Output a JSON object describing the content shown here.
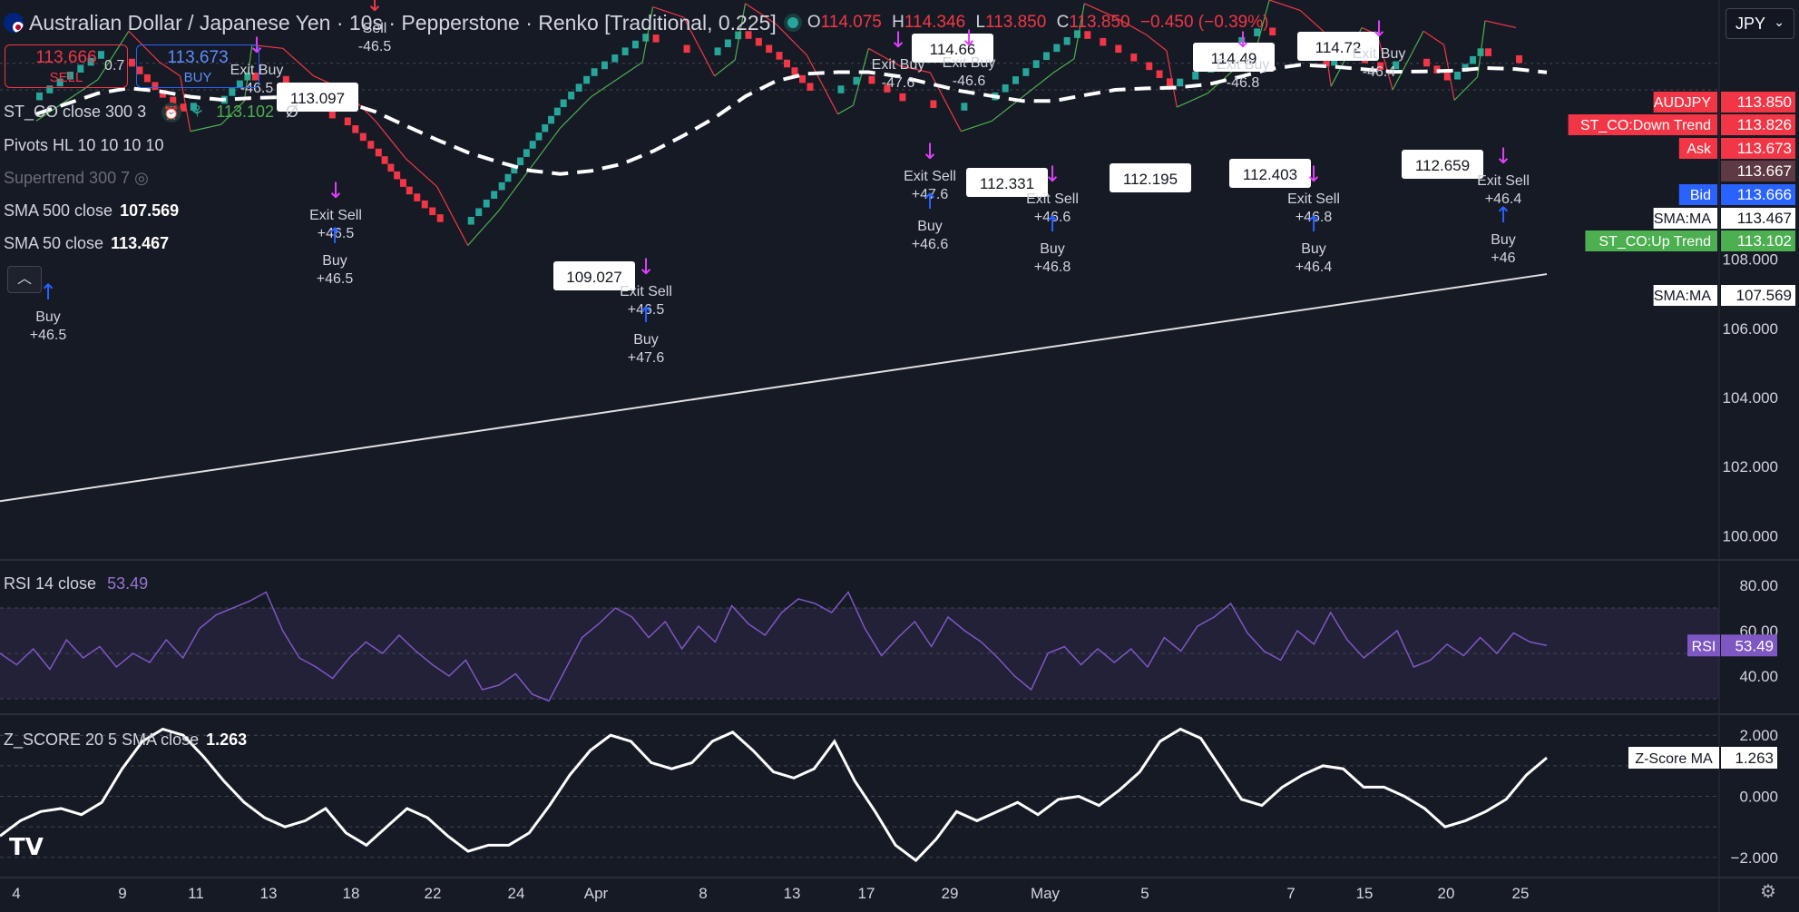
{
  "header": {
    "symbol_title": "Australian Dollar / Japanese Yen · 10s · Pepperstone · Renko [Traditional, 0.225]",
    "ohlc": {
      "o_label": "O",
      "o": "114.075",
      "h_label": "H",
      "h": "114.346",
      "l_label": "L",
      "l": "113.850",
      "c_label": "C",
      "c": "113.850",
      "change": "−0.450 (−0.39%)"
    },
    "currency": "JPY"
  },
  "trade": {
    "sell_price": "113.666",
    "sell_label": "SELL",
    "spread": "0.7",
    "buy_price": "113.673",
    "buy_label": "BUY"
  },
  "legends": {
    "st_co": {
      "name": "ST_CO close 300 3",
      "value": "113.102",
      "extra": "Ø"
    },
    "pivots": {
      "name": "Pivots HL 10 10 10 10"
    },
    "supertrend": {
      "name": "Supertrend 300 7"
    },
    "sma500": {
      "name": "SMA 500 close",
      "value": "107.569"
    },
    "sma50": {
      "name": "SMA 50 close",
      "value": "113.467"
    },
    "rsi": {
      "name": "RSI 14 close",
      "value": "53.49"
    },
    "zscore": {
      "name": "Z_SCORE 20 5 SMA close",
      "value": "1.263"
    }
  },
  "colors": {
    "bg": "#161a25",
    "up": "#26a69a",
    "down": "#f23645",
    "buy_arrow": "#2962ff",
    "exit_arrow": "#e040fb",
    "rsi": "#7e57c2",
    "grid": "#2a2e39"
  },
  "chart_data": [
    {
      "type": "renko",
      "title": "Australian Dollar / Japanese Yen · 10s · Pepperstone · Renko [Traditional, 0.225]",
      "y_ticks": [
        "108.000",
        "106.000",
        "104.000",
        "102.000",
        "100.000"
      ],
      "ylim": [
        99.3,
        115.5
      ],
      "x_ticks": [
        "4",
        "9",
        "11",
        "13",
        "18",
        "22",
        "24",
        "Apr",
        "8",
        "13",
        "17",
        "29",
        "May",
        "5",
        "7",
        "15",
        "20",
        "25"
      ],
      "price_path": [
        112.6,
        113.2,
        113.8,
        113.8,
        112.9,
        112.3,
        112.5,
        113.4,
        113.3,
        112.5,
        112.1,
        111.2,
        110.1,
        109.3,
        109.0,
        110.0,
        111.2,
        112.4,
        113.3,
        113.9,
        114.5,
        114.2,
        113.9,
        114.6,
        114.0,
        113.1,
        112.8,
        113.3,
        112.8,
        112.6,
        112.3,
        112.6,
        113.3,
        114.0,
        114.6,
        114.2,
        113.7,
        113.0,
        113.4,
        114.2,
        114.7,
        114.4,
        113.6,
        113.9,
        113.5,
        113.8,
        113.2,
        114.1,
        113.9,
        113.85
      ],
      "price_labels": [
        {
          "value": "113.0??",
          "text": "113.097"
        },
        {
          "value": "109.02",
          "text": "109.027"
        },
        {
          "value": "114.6",
          "text": "114.66"
        },
        {
          "value": "112.",
          "text": "112.331"
        },
        {
          "value": "112.195",
          "text": "112.195"
        },
        {
          "value": "114.4",
          "text": "114.49"
        },
        {
          "value": "112.403",
          "text": "112.403"
        },
        {
          "value": "114.7",
          "text": "114.72"
        },
        {
          "value": "112.659",
          "text": "112.659"
        }
      ],
      "signals": [
        {
          "type": "Buy",
          "value": "+46.5"
        },
        {
          "type": "Sell",
          "value": "-46.5"
        },
        {
          "type": "Exit Buy",
          "value": "-46.5"
        },
        {
          "type": "Exit Sell",
          "value": "+46.5"
        },
        {
          "type": "Buy",
          "value": "+46.5"
        },
        {
          "type": "Exit Sell",
          "value": "+46.5"
        },
        {
          "type": "Buy",
          "value": "+47.6"
        },
        {
          "type": "Exit Buy",
          "value": "-47.6"
        },
        {
          "type": "Exit Buy",
          "value": "-46.6"
        },
        {
          "type": "Exit Sell",
          "value": "+47.6"
        },
        {
          "type": "Buy",
          "value": "+46.6"
        },
        {
          "type": "Exit Sell",
          "value": "+46.6"
        },
        {
          "type": "Buy",
          "value": "+46.8"
        },
        {
          "type": "Exit Buy",
          "value": "-46.8"
        },
        {
          "type": "Exit Sell",
          "value": "+46.8"
        },
        {
          "type": "Buy",
          "value": "+46.4"
        },
        {
          "type": "Exit Buy",
          "value": "-46.4"
        },
        {
          "type": "Exit Sell",
          "value": "+46.4"
        },
        {
          "type": "Buy",
          "value": "+46"
        }
      ],
      "sma500": {
        "start": 101.0,
        "end": 107.569
      },
      "axis_badges": [
        {
          "label": "AUDJPY",
          "value": "113.850",
          "color": "#f23645"
        },
        {
          "label": "ST_CO:Down Trend",
          "value": "113.826",
          "color": "#f23645"
        },
        {
          "label": "Ask",
          "value": "113.673",
          "color": "#f23645"
        },
        {
          "label": "",
          "value": "113.667",
          "color": "#5d3a44"
        },
        {
          "label": "Bid",
          "value": "113.666",
          "color": "#2962ff"
        },
        {
          "label": "SMA:MA",
          "value": "113.467",
          "color": "#ffffff"
        },
        {
          "label": "ST_CO:Up Trend",
          "value": "113.102",
          "color": "#4caf50"
        },
        {
          "label": "SMA:MA",
          "value": "107.569",
          "color": "#ffffff"
        }
      ]
    },
    {
      "type": "line",
      "title": "RSI 14 close",
      "y_ticks": [
        "80.00",
        "60.00",
        "40.00"
      ],
      "ylim": [
        24,
        88
      ],
      "bands": [
        30,
        70
      ],
      "values": [
        50,
        45,
        52,
        43,
        56,
        48,
        53,
        44,
        50,
        46,
        56,
        48,
        61,
        67,
        70,
        73,
        77,
        60,
        48,
        44,
        39,
        48,
        55,
        50,
        58,
        51,
        45,
        40,
        47,
        34,
        36,
        41,
        32,
        29,
        43,
        57,
        63,
        70,
        66,
        57,
        64,
        52,
        62,
        55,
        71,
        63,
        58,
        68,
        74,
        72,
        68,
        77,
        61,
        49,
        57,
        64,
        53,
        66,
        60,
        55,
        48,
        40,
        34,
        50,
        53,
        45,
        52,
        46,
        52,
        44,
        57,
        51,
        62,
        66,
        72,
        59,
        51,
        47,
        60,
        54,
        68,
        56,
        48,
        54,
        60,
        44,
        47,
        54,
        49,
        57,
        50,
        59,
        55,
        53.49
      ]
    },
    {
      "type": "line",
      "title": "Z_SCORE 20 5 SMA close",
      "y_ticks": [
        "2.000",
        "0.000",
        "−2.000"
      ],
      "ylim": [
        -2.6,
        2.6
      ],
      "values": [
        -1.3,
        -0.8,
        -0.5,
        -0.4,
        -0.6,
        -0.2,
        0.9,
        1.8,
        2.2,
        2.0,
        1.3,
        0.5,
        -0.2,
        -0.7,
        -1.0,
        -0.8,
        -0.4,
        -1.2,
        -1.6,
        -1.0,
        -0.4,
        -0.7,
        -1.3,
        -1.8,
        -1.6,
        -1.6,
        -1.2,
        -0.3,
        0.7,
        1.5,
        2.0,
        1.8,
        1.1,
        0.9,
        1.1,
        1.8,
        2.1,
        1.5,
        0.8,
        0.6,
        0.9,
        1.8,
        0.5,
        -0.5,
        -1.6,
        -2.1,
        -1.4,
        -0.5,
        -0.8,
        -0.5,
        -0.2,
        -0.6,
        -0.1,
        0.0,
        -0.3,
        0.2,
        0.8,
        1.8,
        2.2,
        1.9,
        0.9,
        -0.1,
        -0.3,
        0.3,
        0.7,
        1.0,
        0.9,
        0.3,
        0.3,
        0.0,
        -0.4,
        -1.0,
        -0.8,
        -0.5,
        -0.1,
        0.7,
        1.263
      ]
    }
  ]
}
